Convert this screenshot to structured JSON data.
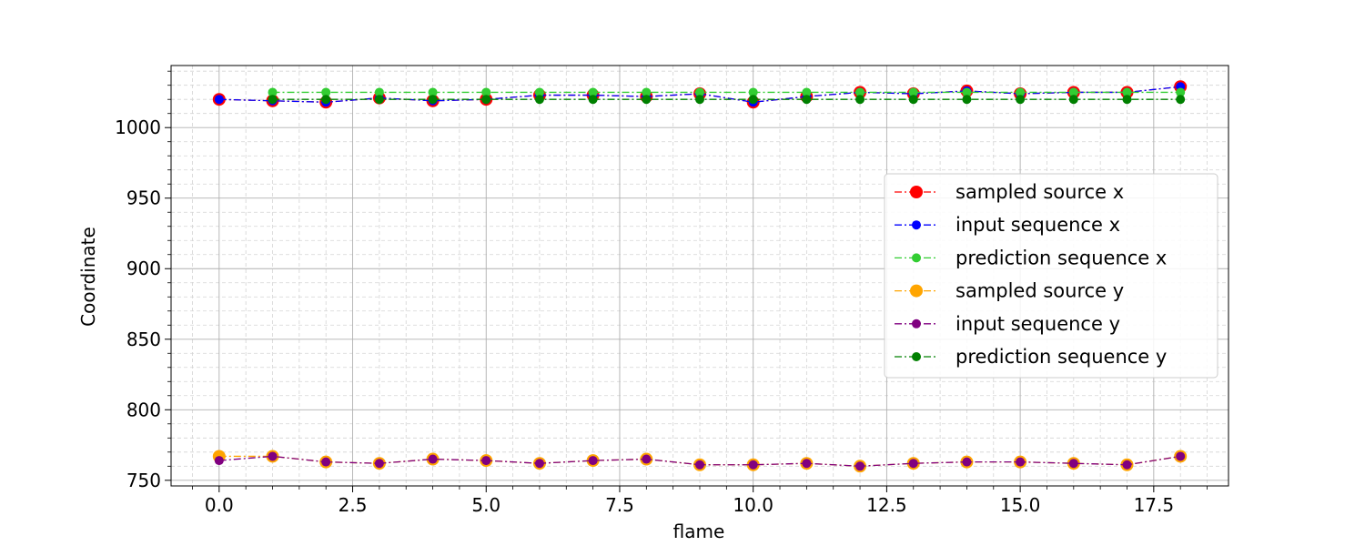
{
  "chart_data": {
    "type": "line",
    "title": "",
    "xlabel": "flame",
    "ylabel": "Coordinate",
    "xlim": [
      -0.9,
      18.9
    ],
    "ylim": [
      746,
      1044
    ],
    "xticks": [
      "0.0",
      "2.5",
      "5.0",
      "7.5",
      "10.0",
      "12.5",
      "15.0",
      "17.5"
    ],
    "yticks": [
      "750",
      "800",
      "850",
      "900",
      "950",
      "1000"
    ],
    "grid": true,
    "minor_grid": true,
    "legend_position": "center-right",
    "series": [
      {
        "name": "sampled source x",
        "color": "#ff0000",
        "marker": "large-circle",
        "line": "dash-dot",
        "x": [
          0,
          1,
          2,
          3,
          4,
          5,
          6,
          7,
          8,
          9,
          10,
          11,
          12,
          13,
          14,
          15,
          16,
          17,
          18
        ],
        "y": [
          1020,
          1019,
          1018,
          1021,
          1019,
          1020,
          1023,
          1023,
          1022,
          1024,
          1018,
          1022,
          1025,
          1024,
          1026,
          1024,
          1025,
          1025,
          1029
        ]
      },
      {
        "name": "input sequence x",
        "color": "#0000ff",
        "marker": "circle",
        "line": "dash-dot",
        "x": [
          0,
          1,
          2,
          3,
          4,
          5,
          6,
          7,
          8,
          9,
          10,
          11,
          12,
          13,
          14,
          15,
          16,
          17,
          18
        ],
        "y": [
          1020,
          1019,
          1018,
          1021,
          1019,
          1020,
          1023,
          1023,
          1022,
          1024,
          1018,
          1022,
          1025,
          1024,
          1026,
          1024,
          1025,
          1025,
          1029
        ]
      },
      {
        "name": "prediction sequence x",
        "color": "#32cd32",
        "marker": "circle",
        "line": "dash-dot",
        "x": [
          1,
          2,
          3,
          4,
          5,
          6,
          7,
          8,
          9,
          10,
          11,
          12,
          13,
          14,
          15,
          16,
          17,
          18
        ],
        "y": [
          1025,
          1025,
          1025,
          1025,
          1025,
          1025,
          1025,
          1025,
          1025,
          1025,
          1025,
          1025,
          1025,
          1025,
          1025,
          1025,
          1025,
          1025
        ]
      },
      {
        "name": "sampled source y",
        "color": "#ffa500",
        "marker": "large-circle",
        "line": "dash-dot",
        "x": [
          0,
          1,
          2,
          3,
          4,
          5,
          6,
          7,
          8,
          9,
          10,
          11,
          12,
          13,
          14,
          15,
          16,
          17,
          18
        ],
        "y": [
          767,
          767,
          763,
          762,
          765,
          764,
          762,
          764,
          765,
          761,
          761,
          762,
          760,
          762,
          763,
          763,
          762,
          761,
          767
        ]
      },
      {
        "name": "input sequence y",
        "color": "#800080",
        "marker": "circle",
        "line": "dash-dot",
        "x": [
          0,
          1,
          2,
          3,
          4,
          5,
          6,
          7,
          8,
          9,
          10,
          11,
          12,
          13,
          14,
          15,
          16,
          17,
          18
        ],
        "y": [
          764,
          767,
          763,
          762,
          765,
          764,
          762,
          764,
          765,
          761,
          761,
          762,
          760,
          762,
          763,
          763,
          762,
          761,
          767
        ]
      },
      {
        "name": "prediction sequence y",
        "color": "#008000",
        "marker": "circle",
        "line": "dash-dot",
        "x": [
          1,
          2,
          3,
          4,
          5,
          6,
          7,
          8,
          9,
          10,
          11,
          12,
          13,
          14,
          15,
          16,
          17,
          18
        ],
        "y": [
          1020,
          1020,
          1020,
          1020,
          1020,
          1020,
          1020,
          1020,
          1020,
          1020,
          1020,
          1020,
          1020,
          1020,
          1020,
          1020,
          1020,
          1020
        ]
      }
    ]
  }
}
